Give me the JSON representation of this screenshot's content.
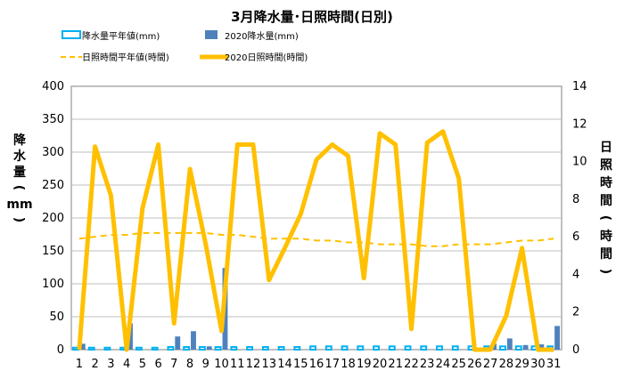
{
  "chart_data": {
    "type": "bar",
    "title": "3月降水量･日照時間(日別)",
    "x": [
      "1",
      "2",
      "3",
      "4",
      "5",
      "6",
      "7",
      "8",
      "9",
      "10",
      "11",
      "12",
      "13",
      "14",
      "15",
      "16",
      "17",
      "18",
      "19",
      "20",
      "21",
      "22",
      "23",
      "24",
      "25",
      "26",
      "27",
      "28",
      "29",
      "30",
      "31"
    ],
    "y_left": {
      "label_chars": [
        "降",
        "水",
        "量",
        "(",
        "mm",
        ")"
      ],
      "ylim": [
        0,
        400
      ],
      "ticks": [
        "0",
        "50",
        "100",
        "150",
        "200",
        "250",
        "300",
        "350",
        "400"
      ]
    },
    "y_right": {
      "label_chars": [
        "日",
        "照",
        "時",
        "間",
        "(",
        "時",
        "間",
        ")"
      ],
      "ylim": [
        0,
        14
      ],
      "ticks": [
        "0",
        "2",
        "4",
        "6",
        "8",
        "10",
        "12",
        "14"
      ]
    },
    "grid": true,
    "legend_position": "top",
    "series": [
      {
        "name": "降水量平年値(mm)",
        "kind": "bar-outline",
        "axis": "left",
        "color": "#00b0f0",
        "values": [
          3,
          3,
          3,
          3,
          3,
          3,
          4,
          4,
          4,
          4,
          4,
          4,
          4,
          4,
          4,
          5,
          5,
          5,
          5,
          5,
          5,
          5,
          5,
          5,
          5,
          5,
          5,
          5,
          5,
          5,
          5
        ]
      },
      {
        "name": "2020降水量(mm)",
        "kind": "bar",
        "axis": "left",
        "color": "#4f81bd",
        "values": [
          9,
          0,
          0,
          40,
          0,
          0,
          20,
          28,
          5,
          124,
          0,
          0,
          0,
          0,
          0,
          0,
          0,
          0,
          0,
          0,
          0,
          0,
          0,
          0,
          0,
          0,
          9,
          17,
          7,
          8,
          36
        ]
      },
      {
        "name": "日照時間平年値(時間)",
        "kind": "line-dashed",
        "axis": "right",
        "color": "#ffc000",
        "values": [
          5.9,
          6.0,
          6.1,
          6.1,
          6.2,
          6.2,
          6.2,
          6.2,
          6.2,
          6.1,
          6.1,
          6.0,
          5.9,
          5.9,
          5.9,
          5.8,
          5.8,
          5.7,
          5.7,
          5.6,
          5.6,
          5.6,
          5.5,
          5.5,
          5.6,
          5.6,
          5.6,
          5.7,
          5.8,
          5.8,
          5.9
        ]
      },
      {
        "name": "2020日照時間(時間)",
        "kind": "line",
        "axis": "right",
        "color": "#ffc000",
        "values": [
          0,
          10.8,
          8.2,
          0,
          7.5,
          10.9,
          1.4,
          9.6,
          5.6,
          1.0,
          10.9,
          10.9,
          3.7,
          5.4,
          7.2,
          10.1,
          10.9,
          10.3,
          3.8,
          11.5,
          10.9,
          1.1,
          11.0,
          11.6,
          9.1,
          0,
          0,
          1.8,
          5.4,
          0,
          0
        ]
      }
    ],
    "colors": {
      "grid": "#bfbfbf",
      "axis": "#808080"
    }
  }
}
